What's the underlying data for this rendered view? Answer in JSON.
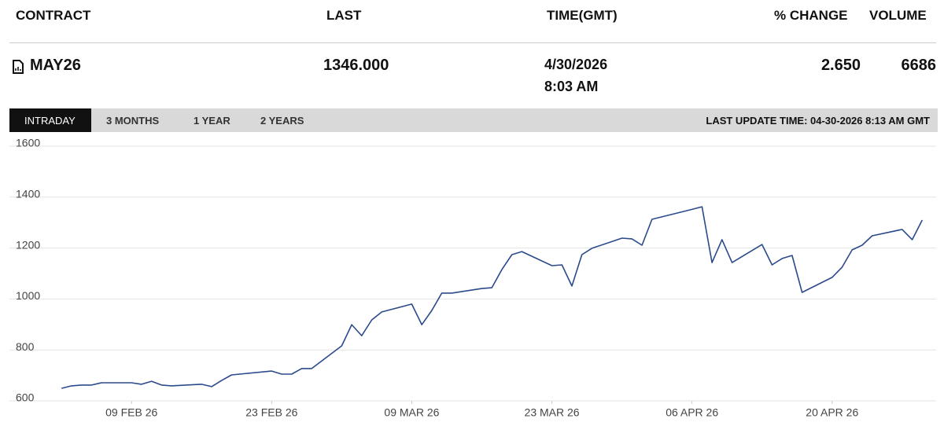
{
  "header": {
    "columns": [
      "CONTRACT",
      "LAST",
      "TIME(GMT)",
      "% CHANGE",
      "VOLUME"
    ]
  },
  "row": {
    "contract": "MAY26",
    "last": "1346.000",
    "date": "4/30/2026",
    "time": "8:03 AM",
    "change": "2.650",
    "volume": "6686"
  },
  "tabs": [
    "INTRADAY",
    "3 MONTHS",
    "1 YEAR",
    "2 YEARS"
  ],
  "last_update": "LAST UPDATE TIME: 04-30-2026 8:13 AM GMT",
  "chart_data": {
    "type": "line",
    "x": [
      "2026-02-02",
      "2026-02-03",
      "2026-02-04",
      "2026-02-05",
      "2026-02-06",
      "2026-02-09",
      "2026-02-10",
      "2026-02-11",
      "2026-02-12",
      "2026-02-13",
      "2026-02-16",
      "2026-02-17",
      "2026-02-18",
      "2026-02-19",
      "2026-02-23",
      "2026-02-24",
      "2026-02-25",
      "2026-02-26",
      "2026-02-27",
      "2026-03-02",
      "2026-03-03",
      "2026-03-04",
      "2026-03-05",
      "2026-03-06",
      "2026-03-09",
      "2026-03-10",
      "2026-03-11",
      "2026-03-12",
      "2026-03-13",
      "2026-03-16",
      "2026-03-17",
      "2026-03-18",
      "2026-03-19",
      "2026-03-20",
      "2026-03-23",
      "2026-03-24",
      "2026-03-25",
      "2026-03-26",
      "2026-03-27",
      "2026-03-30",
      "2026-03-31",
      "2026-04-01",
      "2026-04-02",
      "2026-04-06",
      "2026-04-07",
      "2026-04-08",
      "2026-04-09",
      "2026-04-10",
      "2026-04-13",
      "2026-04-14",
      "2026-04-15",
      "2026-04-16",
      "2026-04-17",
      "2026-04-20",
      "2026-04-21",
      "2026-04-22",
      "2026-04-23",
      "2026-04-24",
      "2026-04-27",
      "2026-04-28",
      "2026-04-29"
    ],
    "series": [
      {
        "color": "#2b4a8b",
        "values": [
          649,
          659,
          662,
          662,
          671,
          671,
          665,
          677,
          662,
          659,
          665,
          656,
          680,
          702,
          717,
          705,
          705,
          727,
          727,
          816,
          899,
          856,
          918,
          949,
          980,
          899,
          955,
          1023,
          1023,
          1041,
          1044,
          1115,
          1174,
          1186,
          1131,
          1134,
          1051,
          1174,
          1199,
          1239,
          1236,
          1211,
          1313,
          1352,
          1362,
          1143,
          1233,
          1143,
          1214,
          1134,
          1159,
          1171,
          1026,
          1085,
          1125,
          1193,
          1211,
          1248,
          1273,
          1233,
          1310
        ]
      }
    ],
    "xlim": [
      "2026-01-30",
      "2026-04-30"
    ],
    "xticks": [
      {
        "value": "2026-02-09",
        "label": "09 FEB 26"
      },
      {
        "value": "2026-02-23",
        "label": "23 FEB 26"
      },
      {
        "value": "2026-03-09",
        "label": "09 MAR 26"
      },
      {
        "value": "2026-03-23",
        "label": "23 MAR 26"
      },
      {
        "value": "2026-04-06",
        "label": "06 APR 26"
      },
      {
        "value": "2026-04-20",
        "label": "20 APR 26"
      }
    ],
    "ylim": [
      600,
      1600
    ],
    "yticks": [
      600,
      800,
      1000,
      1200,
      1400,
      1600
    ],
    "grid": true
  }
}
